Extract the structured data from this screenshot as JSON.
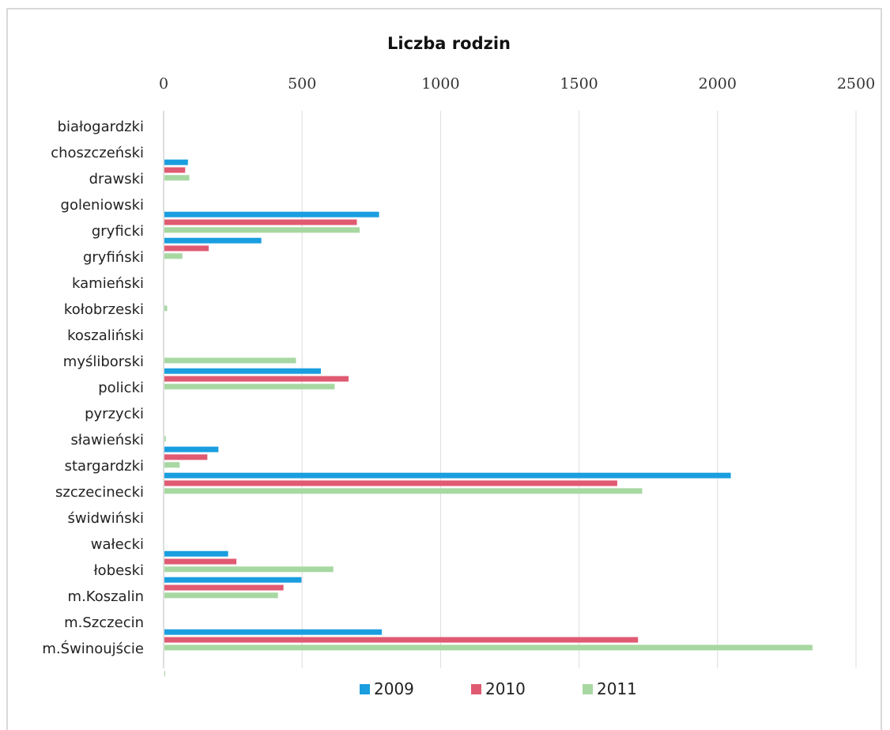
{
  "chart_data": {
    "type": "bar",
    "orientation": "horizontal",
    "title": "Liczba rodzin",
    "xlabel": "",
    "ylabel": "",
    "xlim": [
      0,
      2500
    ],
    "x_ticks": [
      "0",
      "500",
      "1000",
      "1500",
      "2000",
      "2500"
    ],
    "x_axis_position": "top",
    "grid": true,
    "legend_position": "bottom",
    "categories": [
      "białogardzki",
      "choszczeński",
      "drawski",
      "goleniowski",
      "gryficki",
      "gryfiński",
      "kamieński",
      "kołobrzeski",
      "koszaliński",
      "myśliborski",
      "policki",
      "pyrzycki",
      "sławieński",
      "stargardzki",
      "szczecinecki",
      "świdwiński",
      "wałecki",
      "łobeski",
      "m.Koszalin",
      "m.Szczecin",
      "m.Świnoujście"
    ],
    "series": [
      {
        "name": "2009",
        "color": "#1a9ee0",
        "values": [
          0,
          85,
          0,
          775,
          350,
          0,
          0,
          0,
          0,
          565,
          0,
          0,
          195,
          2045,
          0,
          0,
          230,
          495,
          0,
          785,
          0
        ]
      },
      {
        "name": "2010",
        "color": "#e05a72",
        "values": [
          0,
          75,
          0,
          695,
          160,
          0,
          0,
          0,
          0,
          665,
          0,
          0,
          155,
          1635,
          0,
          0,
          260,
          430,
          0,
          1710,
          0
        ]
      },
      {
        "name": "2011",
        "color": "#a8d8a2",
        "values": [
          0,
          90,
          0,
          705,
          65,
          0,
          10,
          0,
          475,
          615,
          0,
          5,
          55,
          1725,
          0,
          0,
          610,
          410,
          0,
          2340,
          3
        ]
      }
    ]
  }
}
